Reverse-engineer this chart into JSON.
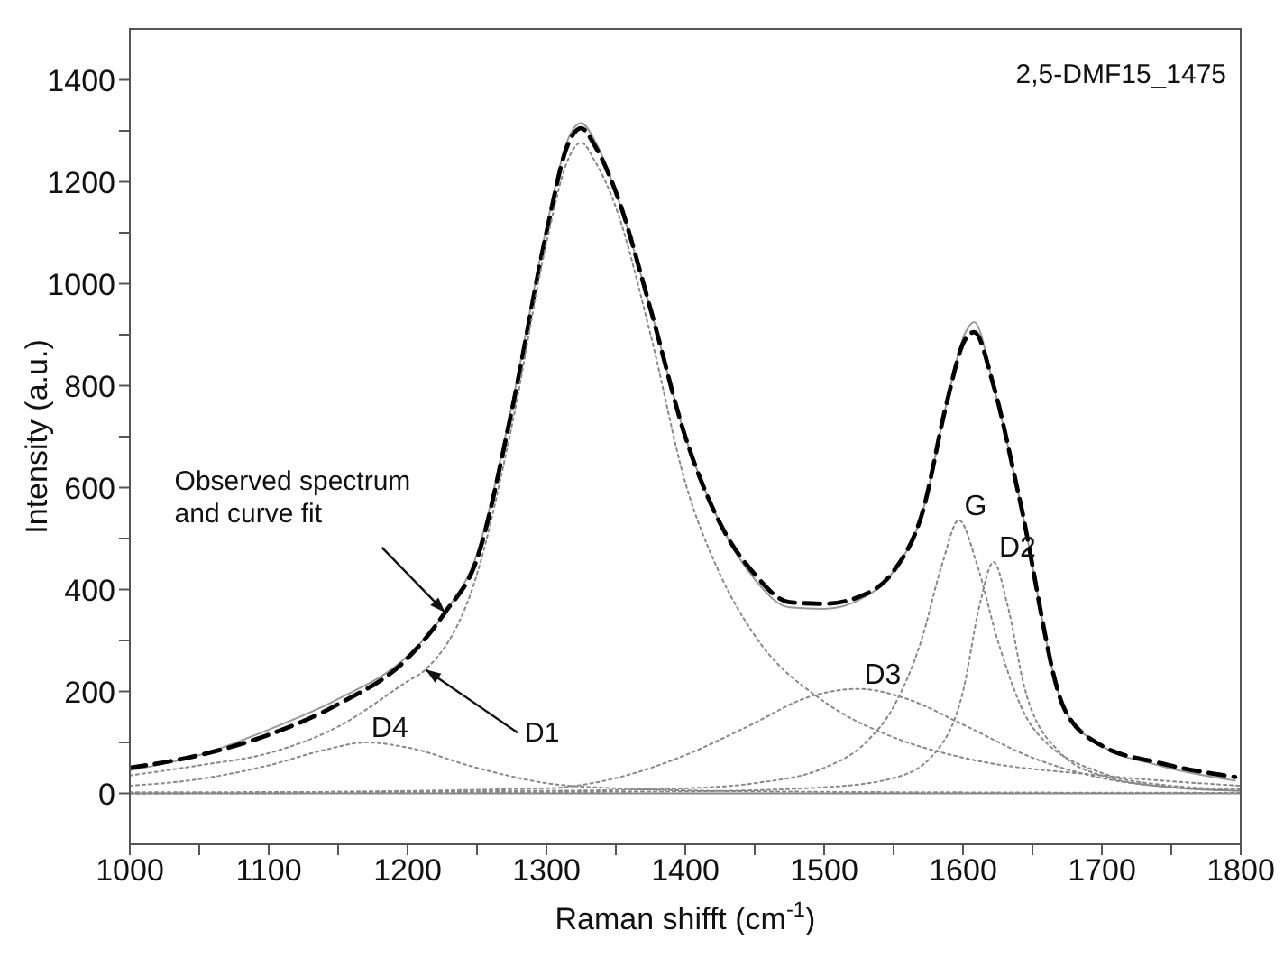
{
  "chart_data": {
    "type": "line",
    "xlabel": "Raman shifft (cm$^{-1}$)",
    "ylabel": "Intensity (a.u.)",
    "xlim": [
      1000,
      1800
    ],
    "ylim": [
      -100,
      1500
    ],
    "xticks": [
      1000,
      {
        "value": 1050,
        "label": null
      },
      1100,
      {
        "value": 1150,
        "label": null
      },
      1200,
      {
        "value": 1250,
        "label": null
      },
      1300,
      {
        "value": 1350,
        "label": null
      },
      1400,
      {
        "value": 1450,
        "label": null
      },
      1500,
      {
        "value": 1550,
        "label": null
      },
      1600,
      {
        "value": 1650,
        "label": null
      },
      1700,
      {
        "value": 1750,
        "label": null
      },
      1800
    ],
    "yticks": [
      0,
      {
        "value": 100,
        "label": null
      },
      200,
      {
        "value": 300,
        "label": null
      },
      400,
      {
        "value": 500,
        "label": null
      },
      600,
      {
        "value": 700,
        "label": null
      },
      800,
      {
        "value": 900,
        "label": null
      },
      1000,
      {
        "value": 1100,
        "label": null
      },
      1200,
      {
        "value": 1300,
        "label": null
      },
      1400
    ],
    "marker": "none",
    "ref_lines": [
      {
        "axis": "y",
        "value": 0,
        "color": "#888888",
        "line_style": "solid"
      }
    ],
    "annotations": [
      "2,5-DMF15_1475",
      {
        "text": "Observed spectrum\nand curve fit",
        "x": 1227,
        "y": 355
      },
      {
        "text": "D1",
        "x": 1213,
        "y": 243
      }
    ],
    "series": [
      {
        "color": "#999999",
        "line_style": "solid",
        "x": [
          1000,
          1050,
          1100,
          1150,
          1200,
          1227,
          1250,
          1275,
          1300,
          1315,
          1325,
          1335,
          1350,
          1375,
          1400,
          1425,
          1450,
          1475,
          1500,
          1529,
          1550,
          1571,
          1588,
          1601,
          1608,
          1622,
          1640,
          1673,
          1699,
          1741,
          1796
        ],
        "values": [
          45,
          75,
          125,
          185,
          270,
          355,
          470,
          760,
          1110,
          1280,
          1315,
          1280,
          1180,
          950,
          700,
          530,
          420,
          365,
          362,
          385,
          436,
          553,
          763,
          900,
          925,
          800,
          587,
          166,
          95,
          55,
          25
        ]
      },
      {
        "color": "#000000",
        "line_style": "dashed",
        "x": [
          1000,
          1050,
          1100,
          1150,
          1200,
          1227,
          1250,
          1275,
          1300,
          1315,
          1325,
          1335,
          1350,
          1375,
          1400,
          1425,
          1450,
          1475,
          1500,
          1529,
          1550,
          1571,
          1588,
          1601,
          1608,
          1622,
          1640,
          1673,
          1699,
          1741,
          1796
        ],
        "values": [
          50,
          75,
          115,
          175,
          265,
          355,
          460,
          750,
          1100,
          1270,
          1305,
          1270,
          1180,
          950,
          700,
          530,
          430,
          375,
          372,
          390,
          436,
          553,
          763,
          888,
          905,
          800,
          587,
          166,
          95,
          60,
          32
        ]
      },
      {
        "color": "#888888",
        "line_style": "dotted",
        "x": [
          1000,
          1050,
          1100,
          1150,
          1200,
          1213,
          1250,
          1275,
          1300,
          1315,
          1325,
          1335,
          1350,
          1375,
          1400,
          1425,
          1450,
          1500,
          1550,
          1600,
          1700,
          1800
        ],
        "values": [
          35,
          55,
          79,
          131,
          220,
          243,
          430,
          720,
          1080,
          1240,
          1277,
          1240,
          1150,
          900,
          610,
          430,
          310,
          180,
          110,
          70,
          35,
          15
        ]
      },
      {
        "name": "D4",
        "color": "#888888",
        "line_style": "dotted",
        "x": [
          1000,
          1050,
          1100,
          1140,
          1170,
          1200,
          1250,
          1300,
          1350,
          1400,
          1500,
          1600,
          1800
        ],
        "values": [
          15,
          28,
          55,
          85,
          100,
          90,
          50,
          20,
          10,
          6,
          3,
          2,
          1
        ]
      },
      {
        "name": "D3",
        "color": "#888888",
        "line_style": "dotted",
        "x": [
          1000,
          1300,
          1350,
          1400,
          1444,
          1490,
          1525,
          1560,
          1600,
          1650,
          1700,
          1750,
          1800
        ],
        "values": [
          0,
          10,
          30,
          75,
          130,
          190,
          205,
          185,
          135,
          70,
          30,
          12,
          5
        ]
      },
      {
        "name": "G",
        "color": "#888888",
        "line_style": "dotted",
        "x": [
          1000,
          1300,
          1400,
          1450,
          1500,
          1530,
          1550,
          1570,
          1585,
          1597,
          1610,
          1625,
          1650,
          1700,
          1750,
          1800
        ],
        "values": [
          2,
          5,
          10,
          20,
          50,
          100,
          170,
          300,
          450,
          536,
          450,
          300,
          130,
          40,
          15,
          8
        ]
      },
      {
        "name": "D2",
        "color": "#888888",
        "line_style": "dotted",
        "x": [
          1000,
          1400,
          1500,
          1550,
          1580,
          1600,
          1612,
          1622,
          1632,
          1645,
          1670,
          1700,
          1750,
          1800
        ],
        "values": [
          0,
          4,
          12,
          30,
          80,
          200,
          370,
          454,
          370,
          200,
          80,
          35,
          12,
          5
        ]
      }
    ]
  }
}
